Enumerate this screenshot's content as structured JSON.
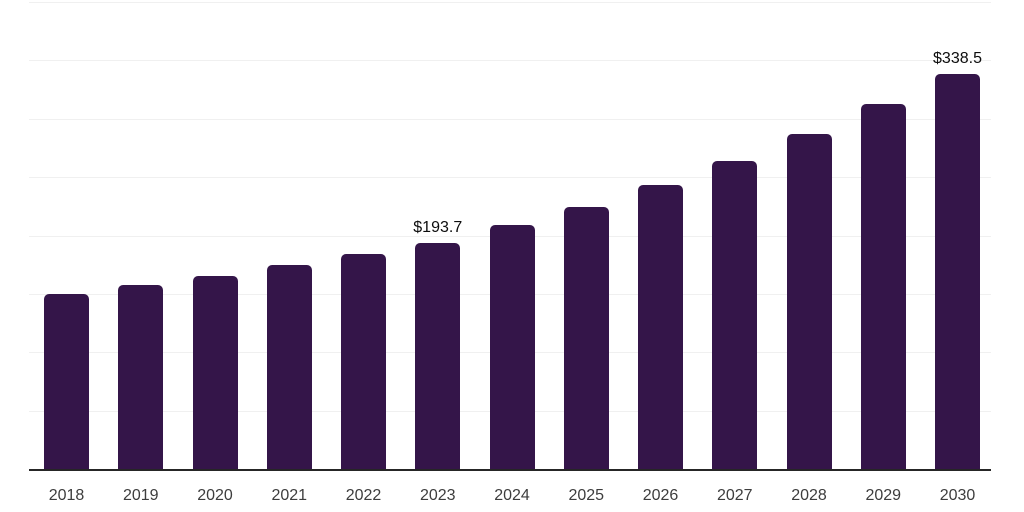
{
  "chart_data": {
    "type": "bar",
    "title": "",
    "xlabel": "",
    "ylabel": "",
    "categories": [
      "2018",
      "2019",
      "2020",
      "2021",
      "2022",
      "2023",
      "2024",
      "2025",
      "2026",
      "2027",
      "2028",
      "2029",
      "2030"
    ],
    "values": [
      150.2,
      157.3,
      165.0,
      174.4,
      183.8,
      193.7,
      209.4,
      224.8,
      243.6,
      264.1,
      287.2,
      312.9,
      338.5
    ],
    "value_labels": [
      "",
      "",
      "",
      "",
      "",
      "$193.7",
      "",
      "",
      "",
      "",
      "",
      "",
      "$338.5"
    ],
    "ylim": [
      0,
      400
    ],
    "gridline_step": 50,
    "grid": true,
    "y_axis_tick_labels_visible": false,
    "legend_position": "none",
    "colors": {
      "bar": "#341549",
      "gridline": "#f0f0f0",
      "axis_line": "#262626",
      "year_label": "#3d3d3d",
      "value_label": "#0d0d0d",
      "background": "#ffffff"
    }
  }
}
